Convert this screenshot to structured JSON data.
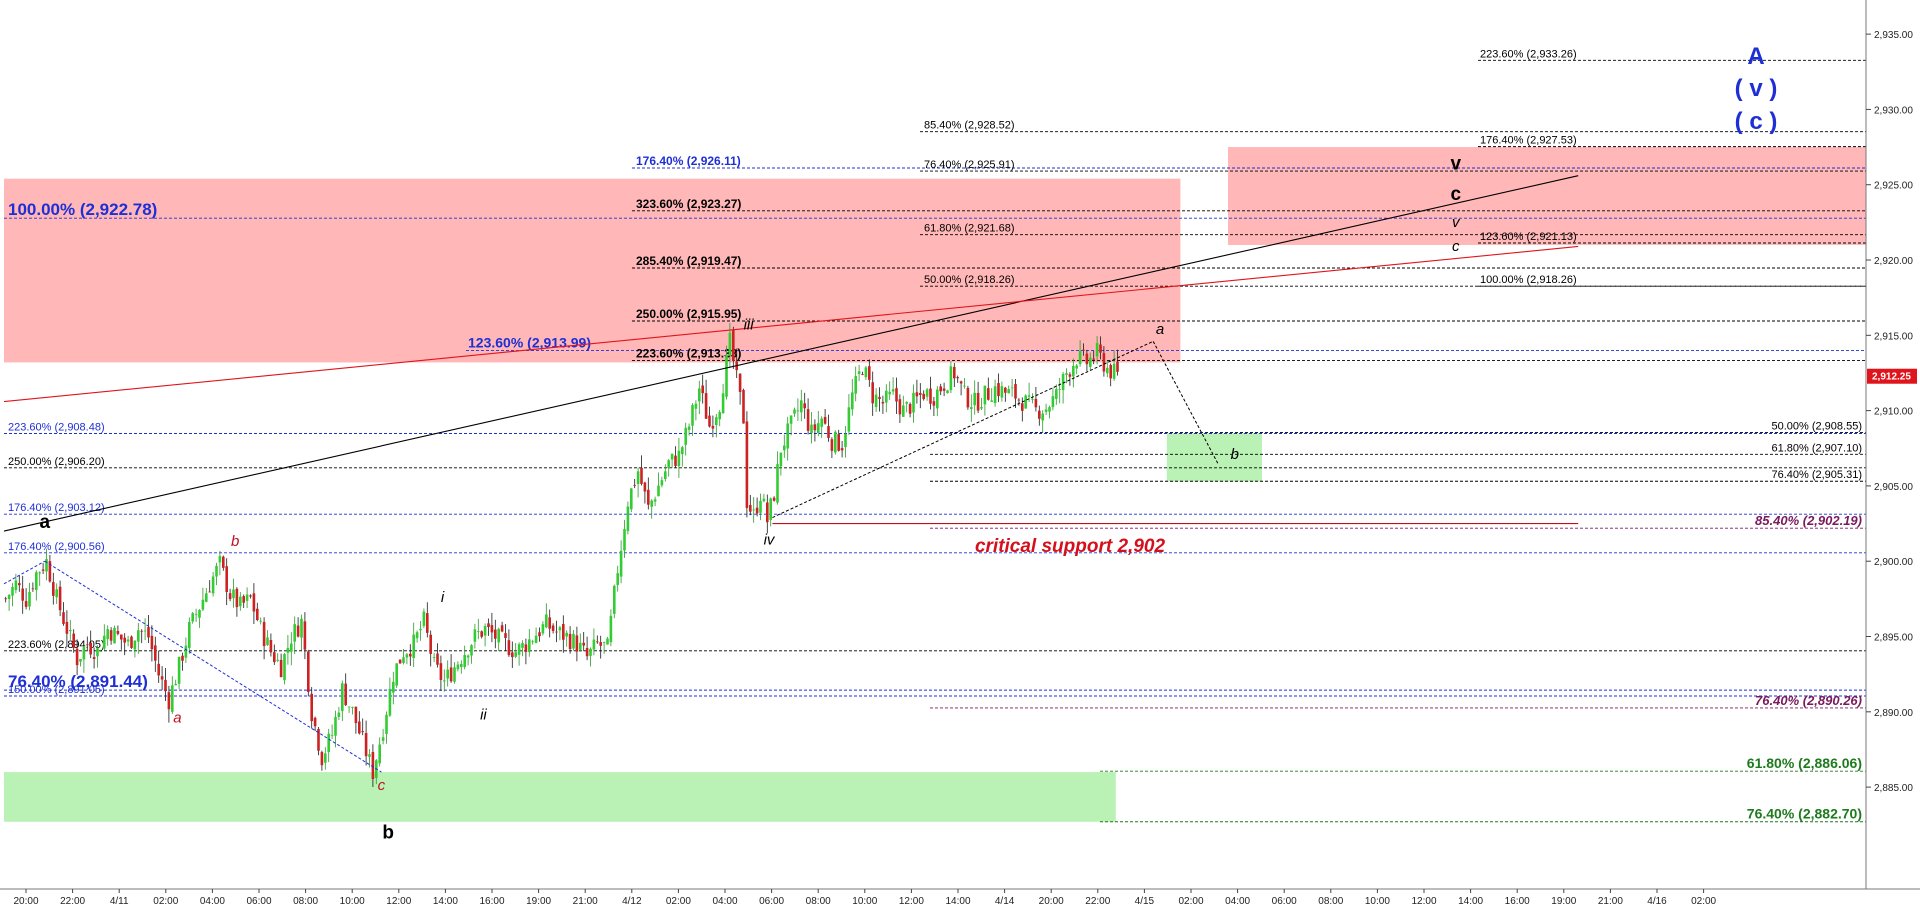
{
  "chart_data": {
    "type": "candlestick",
    "title": "",
    "xlabel": "",
    "ylabel": "",
    "ylim": [
      2878.5,
      2937.0
    ],
    "grid": false,
    "last_price": {
      "value": 2912.25,
      "text": "2,912.25",
      "color": "#e0151c"
    },
    "price_ticks": [
      "2,885.00",
      "2,890.00",
      "2,895.00",
      "2,900.00",
      "2,905.00",
      "2,910.00",
      "2,915.00",
      "2,920.00",
      "2,925.00",
      "2,930.00",
      "2,935.00"
    ],
    "price_tick_values": [
      2885,
      2890,
      2895,
      2900,
      2905,
      2910,
      2915,
      2920,
      2925,
      2930,
      2935
    ],
    "time_labels": [
      "20:00",
      "22:00",
      "4/11",
      "02:00",
      "04:00",
      "06:00",
      "08:00",
      "10:00",
      "12:00",
      "14:00",
      "16:00",
      "19:00",
      "21:00",
      "4/12",
      "02:00",
      "04:00",
      "06:00",
      "08:00",
      "10:00",
      "12:00",
      "14:00",
      "4/14",
      "20:00",
      "22:00",
      "4/15",
      "02:00",
      "04:00",
      "06:00",
      "08:00",
      "10:00",
      "12:00",
      "14:00",
      "16:00",
      "19:00",
      "21:00",
      "4/16",
      "02:00"
    ],
    "price_path": [
      [
        0,
        2897.5
      ],
      [
        3,
        2898.5
      ],
      [
        6,
        2897.5
      ],
      [
        9,
        2899.2
      ],
      [
        12,
        2900.0
      ],
      [
        15,
        2897.5
      ],
      [
        18,
        2895.5
      ],
      [
        21,
        2893.5
      ],
      [
        24,
        2894.5
      ],
      [
        27,
        2894.0
      ],
      [
        30,
        2895.5
      ],
      [
        33,
        2895.0
      ],
      [
        36,
        2894.5
      ],
      [
        39,
        2895.5
      ],
      [
        42,
        2895.0
      ],
      [
        45,
        2892.5
      ],
      [
        48,
        2890.8
      ],
      [
        51,
        2893.0
      ],
      [
        54,
        2895.5
      ],
      [
        57,
        2897.0
      ],
      [
        60,
        2898.5
      ],
      [
        63,
        2899.8
      ],
      [
        66,
        2897.8
      ],
      [
        69,
        2897.0
      ],
      [
        72,
        2897.5
      ],
      [
        75,
        2895.5
      ],
      [
        78,
        2894.0
      ],
      [
        81,
        2893.0
      ],
      [
        84,
        2895.0
      ],
      [
        87,
        2896.0
      ],
      [
        90,
        2890.0
      ],
      [
        93,
        2887.0
      ],
      [
        96,
        2888.5
      ],
      [
        99,
        2891.5
      ],
      [
        102,
        2890.0
      ],
      [
        105,
        2888.0
      ],
      [
        108,
        2886.0
      ],
      [
        111,
        2889.0
      ],
      [
        114,
        2892.5
      ],
      [
        117,
        2894.0
      ],
      [
        120,
        2894.5
      ],
      [
        123,
        2896.0
      ],
      [
        126,
        2893.0
      ],
      [
        129,
        2892.0
      ],
      [
        132,
        2893.0
      ],
      [
        135,
        2894.0
      ],
      [
        138,
        2895.0
      ],
      [
        141,
        2895.5
      ],
      [
        144,
        2895.0
      ],
      [
        147,
        2894.5
      ],
      [
        150,
        2894.0
      ],
      [
        153,
        2894.5
      ],
      [
        156,
        2895.2
      ],
      [
        159,
        2895.8
      ],
      [
        162,
        2895.3
      ],
      [
        165,
        2895.0
      ],
      [
        168,
        2894.5
      ],
      [
        171,
        2893.6
      ],
      [
        174,
        2894.5
      ],
      [
        177,
        2894.2
      ],
      [
        180,
        2899.5
      ],
      [
        183,
        2904.0
      ],
      [
        186,
        2906.0
      ],
      [
        189,
        2903.5
      ],
      [
        192,
        2905.0
      ],
      [
        195,
        2906.5
      ],
      [
        198,
        2907.0
      ],
      [
        201,
        2909.0
      ],
      [
        204,
        2911.5
      ],
      [
        207,
        2909.0
      ],
      [
        210,
        2910.5
      ],
      [
        213,
        2914.5
      ],
      [
        215,
        2912.0
      ],
      [
        217,
        2909.5
      ],
      [
        218,
        2904.0
      ],
      [
        220,
        2903.0
      ],
      [
        222,
        2904.5
      ],
      [
        224,
        2902.7
      ],
      [
        226,
        2904.5
      ],
      [
        228,
        2907.5
      ],
      [
        231,
        2909.0
      ],
      [
        234,
        2910.5
      ],
      [
        237,
        2908.5
      ],
      [
        240,
        2909.5
      ],
      [
        243,
        2908.0
      ],
      [
        246,
        2907.8
      ],
      [
        249,
        2911.0
      ],
      [
        252,
        2913.0
      ],
      [
        255,
        2911.0
      ],
      [
        258,
        2910.5
      ],
      [
        261,
        2911.0
      ],
      [
        264,
        2910.0
      ],
      [
        267,
        2910.5
      ],
      [
        270,
        2911.2
      ],
      [
        273,
        2911.0
      ],
      [
        276,
        2911.8
      ],
      [
        279,
        2912.5
      ],
      [
        282,
        2911.0
      ],
      [
        285,
        2910.5
      ],
      [
        288,
        2911.0
      ],
      [
        291,
        2911.5
      ],
      [
        294,
        2911.2
      ],
      [
        297,
        2911.0
      ],
      [
        300,
        2910.5
      ],
      [
        303,
        2910.0
      ],
      [
        306,
        2910.2
      ],
      [
        309,
        2911.0
      ],
      [
        312,
        2912.5
      ],
      [
        315,
        2913.5
      ],
      [
        318,
        2913.2
      ],
      [
        321,
        2913.8
      ],
      [
        324,
        2912.8
      ],
      [
        327,
        2912.3
      ]
    ],
    "fib_levels": [
      {
        "text": "223.60% (2,933.26)",
        "value": 2933.26,
        "color": "#000000",
        "style": "dashed",
        "label_side": "right-block"
      },
      {
        "text": "85.40% (2,928.52)",
        "value": 2928.52,
        "color": "#000000",
        "style": "dashed",
        "label_side": "mid"
      },
      {
        "text": "176.40% (2,927.53)",
        "value": 2927.53,
        "color": "#000000",
        "style": "dashed",
        "label_side": "right-block"
      },
      {
        "text": "176.40% (2,926.11)",
        "value": 2926.11,
        "color": "#1f2fd6",
        "style": "dashed",
        "label_side": "mid-left"
      },
      {
        "text": "76.40% (2,925.91)",
        "value": 2925.91,
        "color": "#000000",
        "style": "dashed",
        "label_side": "mid"
      },
      {
        "text": "323.60% (2,923.27)",
        "value": 2923.27,
        "color": "#000000",
        "style": "dashed",
        "label_side": "mid-left"
      },
      {
        "text": "100.00% (2,922.78)",
        "value": 2922.78,
        "color": "#1f2fd6",
        "style": "dashed",
        "label_side": "left-large"
      },
      {
        "text": "61.80% (2,921.68)",
        "value": 2921.68,
        "color": "#000000",
        "style": "dashed",
        "label_side": "mid"
      },
      {
        "text": "123.60% (2,921.13)",
        "value": 2921.13,
        "color": "#000000",
        "style": "dashed",
        "label_side": "right-block"
      },
      {
        "text": "285.40% (2,919.47)",
        "value": 2919.47,
        "color": "#000000",
        "style": "dashed",
        "label_side": "mid-left"
      },
      {
        "text": "50.00% (2,918.26)",
        "value": 2918.26,
        "color": "#000000",
        "style": "dashed",
        "label_side": "mid"
      },
      {
        "text": "100.00% (2,918.26)",
        "value": 2918.26,
        "color": "#000000",
        "style": "dashed",
        "label_side": "right-block"
      },
      {
        "text": "250.00% (2,915.95)",
        "value": 2915.95,
        "color": "#000000",
        "style": "dashed",
        "label_side": "mid-left"
      },
      {
        "text": "123.60% (2,913.99)",
        "value": 2913.99,
        "color": "#1f2fd6",
        "style": "dashed",
        "label_side": "mid-left-large"
      },
      {
        "text": "223.60% (2,913.33)",
        "value": 2913.33,
        "color": "#000000",
        "style": "dashed",
        "label_side": "mid-left"
      },
      {
        "text": "50.00% (2,908.55)",
        "value": 2908.55,
        "color": "#000000",
        "style": "dashed",
        "label_side": "right"
      },
      {
        "text": "223.60% (2,908.48)",
        "value": 2908.48,
        "color": "#1f2fd6",
        "style": "dashed",
        "label_side": "left"
      },
      {
        "text": "61.80% (2,907.10)",
        "value": 2907.1,
        "color": "#000000",
        "style": "dashed",
        "label_side": "right"
      },
      {
        "text": "250.00% (2,906.20)",
        "value": 2906.2,
        "color": "#000000",
        "style": "dashed",
        "label_side": "left"
      },
      {
        "text": "76.40% (2,905.31)",
        "value": 2905.31,
        "color": "#000000",
        "style": "dashed",
        "label_side": "right"
      },
      {
        "text": "176.40% (2,903.12)",
        "value": 2903.12,
        "color": "#1f2fd6",
        "style": "dashed",
        "label_side": "left"
      },
      {
        "text": "85.40% (2,902.19)",
        "value": 2902.19,
        "color": "#7a1a5c",
        "style": "dashed",
        "label_side": "right-italic"
      },
      {
        "text": "176.40% (2,900.56)",
        "value": 2900.56,
        "color": "#1f2fd6",
        "style": "dashed",
        "label_side": "left"
      },
      {
        "text": "223.60% (2,894.05)",
        "value": 2894.05,
        "color": "#000000",
        "style": "dashed",
        "label_side": "left"
      },
      {
        "text": "76.40% (2,891.44)",
        "value": 2891.44,
        "color": "#1f2fd6",
        "style": "dashed",
        "label_side": "left-large"
      },
      {
        "text": "150.00% (2,891.05)",
        "value": 2891.05,
        "color": "#1f2fd6",
        "style": "dashed",
        "label_side": "left"
      },
      {
        "text": "76.40% (2,890.26)",
        "value": 2890.26,
        "color": "#7a1a5c",
        "style": "dashed",
        "label_side": "right-italic"
      },
      {
        "text": "61.80% (2,886.06)",
        "value": 2886.06,
        "color": "#1d7a1d",
        "style": "dashed",
        "label_side": "right-bold"
      },
      {
        "text": "76.40% (2,882.70)",
        "value": 2882.7,
        "color": "#1d7a1d",
        "style": "dashed",
        "label_side": "right-bold"
      }
    ],
    "zones": [
      {
        "name": "upper-resistance-zone",
        "from": 2913.2,
        "to": 2925.4,
        "color": "#ffb3b3",
        "start": 0,
        "end": 346
      },
      {
        "name": "target-zone-right",
        "from": 2921.0,
        "to": 2927.5,
        "color": "#ffb3b3",
        "start": 360,
        "end": 1000
      },
      {
        "name": "pullback-b-zone",
        "from": 2905.3,
        "to": 2908.5,
        "color": "#b6f0b0",
        "start": 342,
        "end": 370
      },
      {
        "name": "lower-support-zone",
        "from": 2882.7,
        "to": 2886.0,
        "color": "#b6f0b0",
        "start": 0,
        "end": 327
      }
    ],
    "wave_labels": [
      {
        "text": "a",
        "color": "#000000",
        "bold": true,
        "italic": false,
        "x": 12,
        "value": 2902.2
      },
      {
        "text": "b",
        "color": "#c0101e",
        "bold": false,
        "italic": true,
        "x": 68,
        "value": 2901.0
      },
      {
        "text": "a",
        "color": "#c0101e",
        "bold": false,
        "italic": true,
        "x": 51,
        "value": 2889.3
      },
      {
        "text": "c",
        "color": "#c0101e",
        "bold": false,
        "italic": true,
        "x": 111,
        "value": 2884.8
      },
      {
        "text": "b",
        "color": "#000000",
        "bold": true,
        "italic": false,
        "x": 113,
        "value": 2881.6
      },
      {
        "text": "i",
        "color": "#000000",
        "bold": false,
        "italic": true,
        "x": 129,
        "value": 2897.3
      },
      {
        "text": "ii",
        "color": "#000000",
        "bold": false,
        "italic": true,
        "x": 141,
        "value": 2889.5
      },
      {
        "text": "iii",
        "color": "#000000",
        "bold": false,
        "italic": true,
        "x": 219,
        "value": 2915.4
      },
      {
        "text": "iv",
        "color": "#000000",
        "bold": false,
        "italic": true,
        "x": 225,
        "value": 2901.1
      },
      {
        "text": "a",
        "color": "#000000",
        "bold": false,
        "italic": true,
        "x": 340,
        "value": 2915.1
      },
      {
        "text": "b",
        "color": "#000000",
        "bold": false,
        "italic": true,
        "x": 362,
        "value": 2906.8
      },
      {
        "text": "v",
        "color": "#000000",
        "bold": true,
        "italic": false,
        "x": 427,
        "value": 2926.0
      },
      {
        "text": "c",
        "color": "#000000",
        "bold": true,
        "italic": false,
        "x": 427,
        "value": 2924.0
      },
      {
        "text": "v",
        "color": "#000000",
        "bold": false,
        "italic": true,
        "x": 427,
        "value": 2922.2
      },
      {
        "text": "c",
        "color": "#000000",
        "bold": false,
        "italic": true,
        "x": 427,
        "value": 2920.6
      }
    ],
    "primary_labels": [
      {
        "text": "A",
        "color": "#1f2fd6",
        "value": 2933.0
      },
      {
        "text": "( v )",
        "color": "#1f2fd6",
        "value": 2930.9
      },
      {
        "text": "( c )",
        "color": "#1f2fd6",
        "value": 2928.7
      }
    ],
    "annotation": {
      "text": "critical support 2,902",
      "color": "#d4101c"
    },
    "trendlines": [
      {
        "name": "black-channel-line",
        "color": "#000000",
        "from": [
          0,
          2902.0
        ],
        "to": [
          463,
          2925.6
        ]
      },
      {
        "name": "red-channel-line",
        "color": "#e0151c",
        "from": [
          0,
          2910.6
        ],
        "to": [
          463,
          2920.9
        ]
      },
      {
        "name": "blue-dotted-line",
        "color": "#1f2fd6",
        "dotted": true,
        "from": [
          0,
          2898.5
        ],
        "to": [
          12,
          2900.0
        ]
      },
      {
        "name": "blue-dotted-down",
        "color": "#1f2fd6",
        "dotted": true,
        "from": [
          12,
          2900.0
        ],
        "to": [
          111,
          2886.0
        ]
      },
      {
        "name": "black-dotted-channel",
        "color": "#000000",
        "dotted": true,
        "from": [
          226,
          2902.9
        ],
        "to": [
          338,
          2914.6
        ]
      },
      {
        "name": "black-dotted-projection",
        "color": "#000000",
        "dotted": true,
        "from": [
          338,
          2914.6
        ],
        "to": [
          357,
          2906.5
        ]
      },
      {
        "name": "red-support-line",
        "color": "#c0101e",
        "dotted": false,
        "from": [
          226,
          2902.5
        ],
        "to": [
          463,
          2902.5
        ]
      }
    ]
  }
}
